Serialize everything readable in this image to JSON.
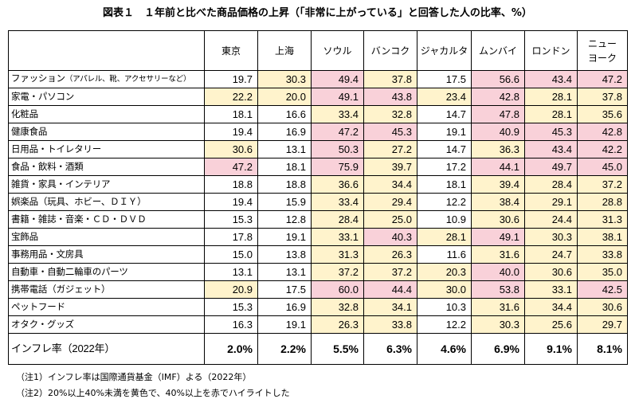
{
  "title": "図表１　１年前と比べた商品価格の上昇（「非常に上がっている」と回答した人の比率、%）",
  "cities": [
    "東京",
    "上海",
    "ソウル",
    "バンコク",
    "ジャカルタ",
    "ムンバイ",
    "ロンドン",
    "ニュー\nヨーク"
  ],
  "rows": [
    {
      "label": "ファッション",
      "note": "（アパレル、靴、アクセサリーなど）",
      "values": [
        "19.7",
        "30.3",
        "49.4",
        "37.8",
        "17.5",
        "56.6",
        "43.4",
        "47.2"
      ],
      "hl": [
        "",
        "y",
        "r",
        "y",
        "",
        "r",
        "r",
        "r"
      ]
    },
    {
      "label": "家電・パソコン",
      "note": "",
      "values": [
        "22.2",
        "20.0",
        "49.1",
        "43.8",
        "23.4",
        "42.8",
        "28.1",
        "37.8"
      ],
      "hl": [
        "y",
        "y",
        "r",
        "r",
        "y",
        "r",
        "y",
        "y"
      ]
    },
    {
      "label": "化粧品",
      "note": "",
      "values": [
        "18.1",
        "16.6",
        "33.4",
        "32.8",
        "14.7",
        "47.8",
        "28.1",
        "35.6"
      ],
      "hl": [
        "",
        "",
        "y",
        "y",
        "",
        "r",
        "y",
        "y"
      ]
    },
    {
      "label": "健康食品",
      "note": "",
      "values": [
        "19.4",
        "16.9",
        "47.2",
        "45.3",
        "19.1",
        "40.9",
        "45.3",
        "42.8"
      ],
      "hl": [
        "",
        "",
        "r",
        "r",
        "",
        "r",
        "r",
        "r"
      ]
    },
    {
      "label": "日用品・トイレタリー",
      "note": "",
      "values": [
        "30.6",
        "13.1",
        "50.3",
        "27.2",
        "14.7",
        "36.3",
        "43.4",
        "42.2"
      ],
      "hl": [
        "y",
        "",
        "r",
        "y",
        "",
        "y",
        "r",
        "r"
      ]
    },
    {
      "label": "食品・飲料・酒類",
      "note": "",
      "values": [
        "47.2",
        "18.1",
        "75.9",
        "39.7",
        "17.2",
        "44.1",
        "49.7",
        "45.0"
      ],
      "hl": [
        "r",
        "",
        "r",
        "y",
        "",
        "r",
        "r",
        "r"
      ]
    },
    {
      "label": "雑貨・家具・インテリア",
      "note": "",
      "values": [
        "18.8",
        "18.8",
        "36.6",
        "34.4",
        "18.1",
        "39.4",
        "28.4",
        "37.2"
      ],
      "hl": [
        "",
        "",
        "y",
        "y",
        "",
        "y",
        "y",
        "y"
      ]
    },
    {
      "label": "娯楽品（玩具、ホビー、ＤＩＹ）",
      "note": "",
      "values": [
        "19.4",
        "15.9",
        "33.4",
        "29.4",
        "12.2",
        "38.4",
        "29.1",
        "28.8"
      ],
      "hl": [
        "",
        "",
        "y",
        "y",
        "",
        "y",
        "y",
        "y"
      ]
    },
    {
      "label": "書籍・雑誌・音楽・ＣＤ・ＤＶＤ",
      "note": "",
      "values": [
        "15.3",
        "12.8",
        "28.4",
        "25.0",
        "10.9",
        "30.6",
        "24.4",
        "31.3"
      ],
      "hl": [
        "",
        "",
        "y",
        "y",
        "",
        "y",
        "y",
        "y"
      ]
    },
    {
      "label": "宝飾品",
      "note": "",
      "values": [
        "17.8",
        "19.1",
        "33.1",
        "40.3",
        "28.1",
        "49.1",
        "30.3",
        "38.1"
      ],
      "hl": [
        "",
        "",
        "y",
        "r",
        "y",
        "r",
        "y",
        "y"
      ]
    },
    {
      "label": "事務用品・文房具",
      "note": "",
      "values": [
        "15.0",
        "13.8",
        "31.3",
        "26.3",
        "11.6",
        "31.6",
        "24.7",
        "33.8"
      ],
      "hl": [
        "",
        "",
        "y",
        "y",
        "",
        "y",
        "y",
        "y"
      ]
    },
    {
      "label": "自動車・自動二輪車のパーツ",
      "note": "",
      "values": [
        "13.1",
        "13.1",
        "37.2",
        "37.2",
        "20.3",
        "40.0",
        "30.6",
        "35.0"
      ],
      "hl": [
        "",
        "",
        "y",
        "y",
        "y",
        "r",
        "y",
        "y"
      ]
    },
    {
      "label": "携帯電話（ガジェット）",
      "note": "",
      "values": [
        "20.9",
        "17.5",
        "60.0",
        "44.4",
        "30.0",
        "53.8",
        "33.1",
        "42.5"
      ],
      "hl": [
        "y",
        "",
        "r",
        "r",
        "y",
        "r",
        "y",
        "r"
      ]
    },
    {
      "label": "ペットフード",
      "note": "",
      "values": [
        "15.3",
        "16.9",
        "32.8",
        "34.1",
        "10.3",
        "31.6",
        "34.4",
        "30.6"
      ],
      "hl": [
        "",
        "",
        "y",
        "y",
        "",
        "y",
        "y",
        "y"
      ]
    },
    {
      "label": "オタク・グッズ",
      "note": "",
      "values": [
        "16.3",
        "19.1",
        "26.3",
        "33.8",
        "12.2",
        "30.3",
        "25.6",
        "29.7"
      ],
      "hl": [
        "",
        "",
        "y",
        "y",
        "",
        "y",
        "y",
        "y"
      ]
    }
  ],
  "inflation": {
    "label": "インフレ率（2022年）",
    "values": [
      "2.0%",
      "2.2%",
      "5.5%",
      "6.3%",
      "4.6%",
      "6.9%",
      "9.1%",
      "8.1%"
    ]
  },
  "notes": [
    "（注1）インフレ率は国際通貨基金（IMF）よる（2022年）",
    "（注2）20%以上40%未満を黄色で、40%以上を赤でハイライトした"
  ],
  "colors": {
    "yellow_highlight": "#fff3cc",
    "red_highlight": "#f9d1d9"
  }
}
